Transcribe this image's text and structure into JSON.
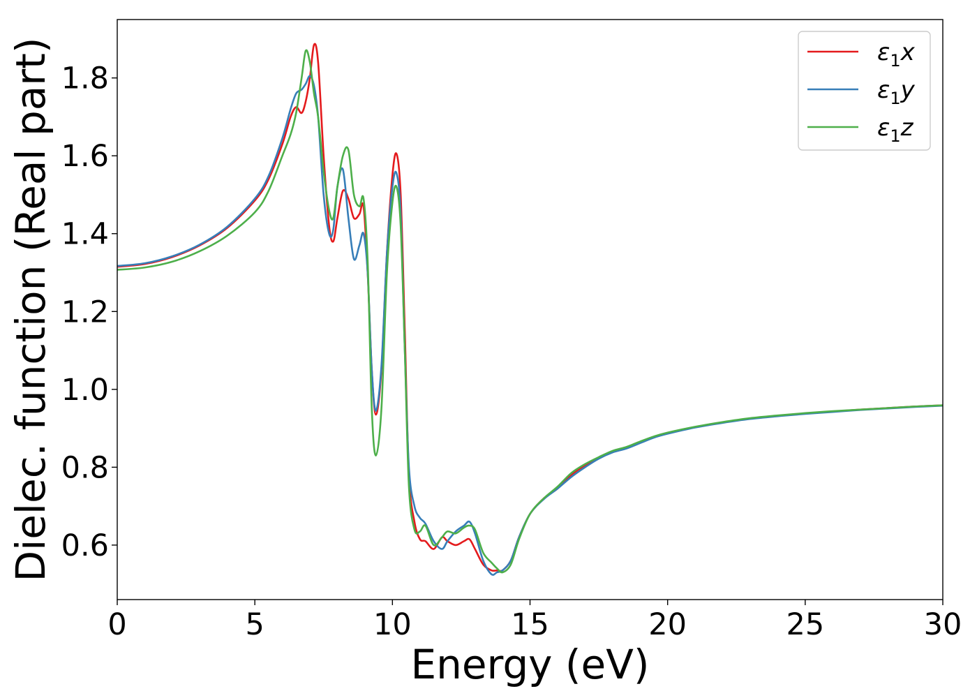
{
  "chart_data": {
    "type": "line",
    "title": "",
    "xlabel": "Energy (eV)",
    "ylabel": "Dielec. function (Real part)",
    "xlim": [
      0,
      30
    ],
    "ylim": [
      0.46,
      1.95
    ],
    "xticks": [
      0,
      5,
      10,
      15,
      20,
      25,
      30
    ],
    "xtick_labels": [
      "0",
      "5",
      "10",
      "15",
      "20",
      "25",
      "30"
    ],
    "yticks": [
      0.6,
      0.8,
      1.0,
      1.2,
      1.4,
      1.6,
      1.8
    ],
    "ytick_labels": [
      "0.6",
      "0.8",
      "1.0",
      "1.2",
      "1.4",
      "1.6",
      "1.8"
    ],
    "grid": false,
    "legend_position": "top-right",
    "series": [
      {
        "name": "ε1x",
        "legend": {
          "symbol": "ε",
          "sub": "1",
          "var": "x"
        },
        "color": "#e41a1c",
        "x": [
          0,
          1,
          2,
          3,
          4,
          5,
          5.5,
          6,
          6.3,
          6.5,
          6.7,
          6.85,
          7.0,
          7.15,
          7.3,
          7.5,
          7.7,
          7.85,
          8.0,
          8.2,
          8.4,
          8.6,
          8.8,
          8.95,
          9.1,
          9.25,
          9.4,
          9.6,
          9.8,
          10.0,
          10.15,
          10.3,
          10.45,
          10.6,
          10.8,
          11.0,
          11.2,
          11.5,
          11.8,
          12.0,
          12.3,
          12.6,
          12.8,
          13.0,
          13.3,
          13.6,
          13.8,
          14.0,
          14.3,
          14.6,
          15.0,
          15.5,
          16.0,
          16.5,
          17.0,
          17.5,
          18.0,
          18.5,
          19.0,
          19.5,
          20.0,
          21.0,
          22.0,
          23.0,
          24.0,
          25.0,
          26.0,
          27.0,
          28.0,
          29.0,
          30.0
        ],
        "y": [
          1.315,
          1.322,
          1.34,
          1.37,
          1.415,
          1.485,
          1.54,
          1.63,
          1.7,
          1.725,
          1.71,
          1.74,
          1.8,
          1.885,
          1.84,
          1.6,
          1.42,
          1.38,
          1.44,
          1.51,
          1.49,
          1.44,
          1.45,
          1.47,
          1.3,
          1.05,
          0.935,
          1.05,
          1.35,
          1.55,
          1.605,
          1.5,
          1.15,
          0.78,
          0.66,
          0.615,
          0.61,
          0.59,
          0.62,
          0.61,
          0.6,
          0.61,
          0.615,
          0.59,
          0.55,
          0.535,
          0.535,
          0.535,
          0.56,
          0.62,
          0.68,
          0.72,
          0.745,
          0.78,
          0.805,
          0.825,
          0.84,
          0.85,
          0.865,
          0.878,
          0.888,
          0.903,
          0.915,
          0.925,
          0.932,
          0.938,
          0.943,
          0.948,
          0.952,
          0.956,
          0.959
        ]
      },
      {
        "name": "ε1y",
        "legend": {
          "symbol": "ε",
          "sub": "1",
          "var": "y"
        },
        "color": "#377eb8",
        "x": [
          0,
          1,
          2,
          3,
          4,
          5,
          5.5,
          6,
          6.3,
          6.5,
          6.7,
          6.85,
          7.0,
          7.15,
          7.3,
          7.5,
          7.7,
          7.85,
          8.0,
          8.2,
          8.4,
          8.6,
          8.8,
          8.95,
          9.1,
          9.25,
          9.4,
          9.6,
          9.8,
          10.0,
          10.15,
          10.3,
          10.45,
          10.6,
          10.8,
          11.0,
          11.2,
          11.5,
          11.8,
          12.0,
          12.3,
          12.6,
          12.8,
          13.0,
          13.3,
          13.6,
          13.8,
          14.0,
          14.3,
          14.6,
          15.0,
          15.5,
          16.0,
          16.5,
          17.0,
          17.5,
          18.0,
          18.5,
          19.0,
          19.5,
          20.0,
          21.0,
          22.0,
          23.0,
          24.0,
          25.0,
          26.0,
          27.0,
          28.0,
          29.0,
          30.0
        ],
        "y": [
          1.317,
          1.324,
          1.342,
          1.372,
          1.418,
          1.49,
          1.548,
          1.645,
          1.72,
          1.76,
          1.77,
          1.785,
          1.805,
          1.78,
          1.7,
          1.5,
          1.4,
          1.41,
          1.52,
          1.565,
          1.44,
          1.335,
          1.37,
          1.4,
          1.3,
          1.05,
          0.945,
          1.06,
          1.35,
          1.52,
          1.555,
          1.45,
          1.1,
          0.8,
          0.7,
          0.67,
          0.655,
          0.61,
          0.59,
          0.61,
          0.635,
          0.65,
          0.66,
          0.63,
          0.56,
          0.525,
          0.53,
          0.535,
          0.56,
          0.62,
          0.68,
          0.718,
          0.745,
          0.775,
          0.8,
          0.822,
          0.838,
          0.848,
          0.862,
          0.876,
          0.886,
          0.902,
          0.914,
          0.924,
          0.931,
          0.937,
          0.942,
          0.947,
          0.951,
          0.955,
          0.958
        ]
      },
      {
        "name": "ε1z",
        "legend": {
          "symbol": "ε",
          "sub": "1",
          "var": "z"
        },
        "color": "#4daf4a",
        "x": [
          0,
          1,
          2,
          3,
          4,
          5,
          5.5,
          6,
          6.3,
          6.5,
          6.7,
          6.85,
          7.0,
          7.15,
          7.3,
          7.5,
          7.7,
          7.85,
          8.0,
          8.2,
          8.4,
          8.6,
          8.8,
          8.95,
          9.1,
          9.25,
          9.4,
          9.6,
          9.8,
          10.0,
          10.15,
          10.3,
          10.45,
          10.6,
          10.8,
          11.0,
          11.2,
          11.5,
          11.8,
          12.0,
          12.3,
          12.6,
          12.8,
          13.0,
          13.3,
          13.6,
          13.8,
          14.0,
          14.3,
          14.6,
          15.0,
          15.5,
          16.0,
          16.5,
          17.0,
          17.5,
          18.0,
          18.5,
          19.0,
          19.5,
          20.0,
          21.0,
          22.0,
          23.0,
          24.0,
          25.0,
          26.0,
          27.0,
          28.0,
          29.0,
          30.0
        ],
        "y": [
          1.307,
          1.313,
          1.328,
          1.355,
          1.395,
          1.455,
          1.51,
          1.6,
          1.655,
          1.71,
          1.8,
          1.87,
          1.84,
          1.76,
          1.7,
          1.56,
          1.46,
          1.44,
          1.52,
          1.6,
          1.615,
          1.5,
          1.47,
          1.49,
          1.33,
          0.95,
          0.83,
          0.95,
          1.3,
          1.48,
          1.52,
          1.42,
          1.1,
          0.75,
          0.64,
          0.635,
          0.65,
          0.6,
          0.62,
          0.635,
          0.63,
          0.645,
          0.65,
          0.64,
          0.58,
          0.555,
          0.54,
          0.53,
          0.55,
          0.615,
          0.68,
          0.72,
          0.75,
          0.785,
          0.808,
          0.826,
          0.842,
          0.852,
          0.866,
          0.879,
          0.889,
          0.904,
          0.916,
          0.926,
          0.933,
          0.939,
          0.944,
          0.948,
          0.952,
          0.956,
          0.959
        ]
      }
    ]
  }
}
